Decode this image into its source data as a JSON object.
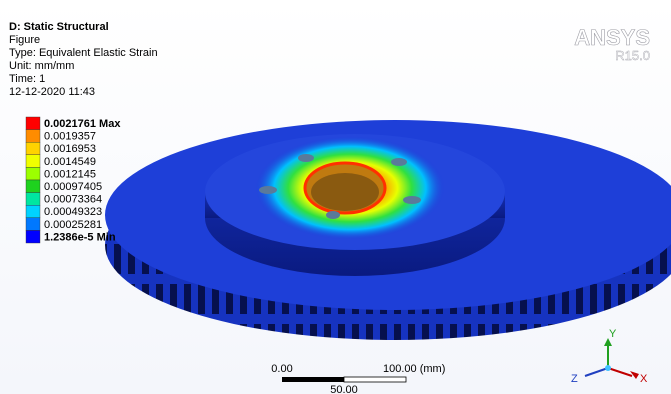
{
  "header": {
    "title": "D: Static Structural",
    "lines": [
      "Figure",
      "Type: Equivalent Elastic Strain",
      "Unit: mm/mm",
      "Time: 1",
      "12-12-2020 11:43"
    ]
  },
  "logo": {
    "name": "ANSYS",
    "version": "R15.0"
  },
  "legend": {
    "labels": [
      "0.0021761 Max",
      "0.0019357",
      "0.0016953",
      "0.0014549",
      "0.0012145",
      "0.00097405",
      "0.00073364",
      "0.00049323",
      "0.00025281",
      "1.2386e-5 Min"
    ]
  },
  "scale_bar": {
    "start": "0.00",
    "end": "100.00 (mm)",
    "mid": "50.00"
  },
  "triad": {
    "y": "Y",
    "z": "Z",
    "x": "X"
  }
}
